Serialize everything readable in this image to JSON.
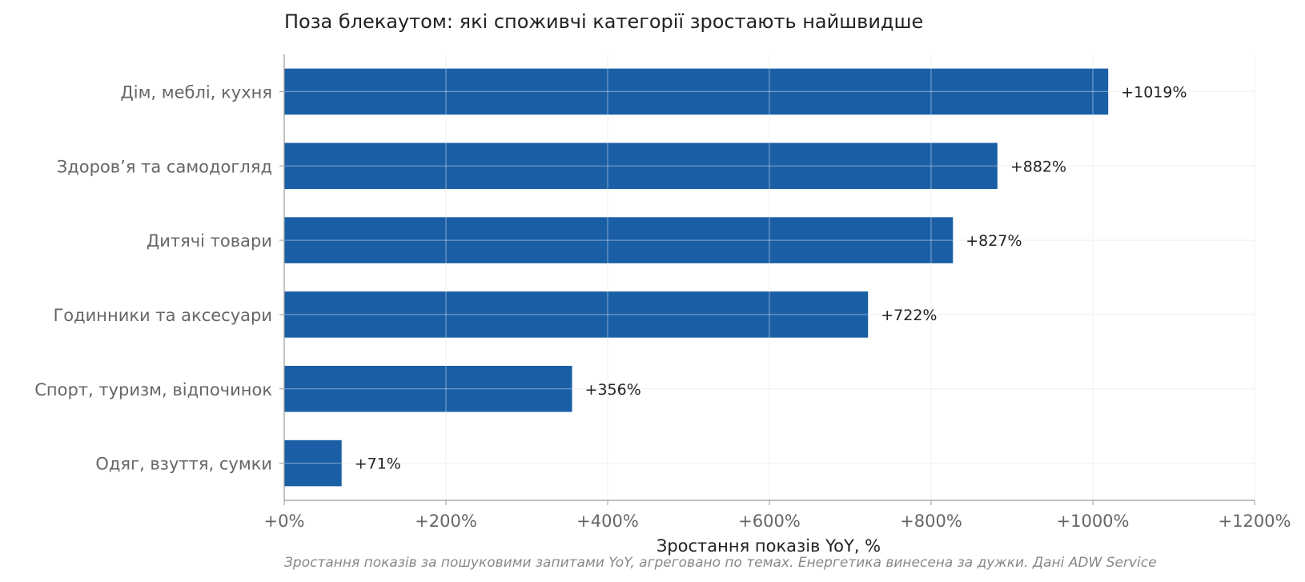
{
  "chart_data": {
    "type": "bar",
    "orientation": "horizontal",
    "title": "Поза блекаутом: які споживчі категорії зростають найшвидше",
    "xlabel": "Зростання показів YoY, %",
    "ylabel": "",
    "caption": "Зростання показів за пошуковими запитами YoY, агреговано по темах. Енергетика винесена за дужки. Дані ADW Service",
    "categories": [
      "Дім, меблі, кухня",
      "Здоров’я та самодогляд",
      "Дитячі товари",
      "Годинники та аксесуари",
      "Спорт, туризм, відпочинок",
      "Одяг, взуття, сумки"
    ],
    "values": [
      1019,
      882,
      827,
      722,
      356,
      71
    ],
    "data_labels": [
      "+1019%",
      "+882%",
      "+827%",
      "+722%",
      "+356%",
      "+71%"
    ],
    "xlim": [
      0,
      1200
    ],
    "xticks": [
      0,
      200,
      400,
      600,
      800,
      1000,
      1200
    ],
    "xtick_labels": [
      "+0%",
      "+200%",
      "+400%",
      "+600%",
      "+800%",
      "+1000%",
      "+1200%"
    ],
    "grid": true,
    "bar_color": "#1a5fa6",
    "grid_color": "#e6e6e6",
    "axis_color": "#999999"
  }
}
